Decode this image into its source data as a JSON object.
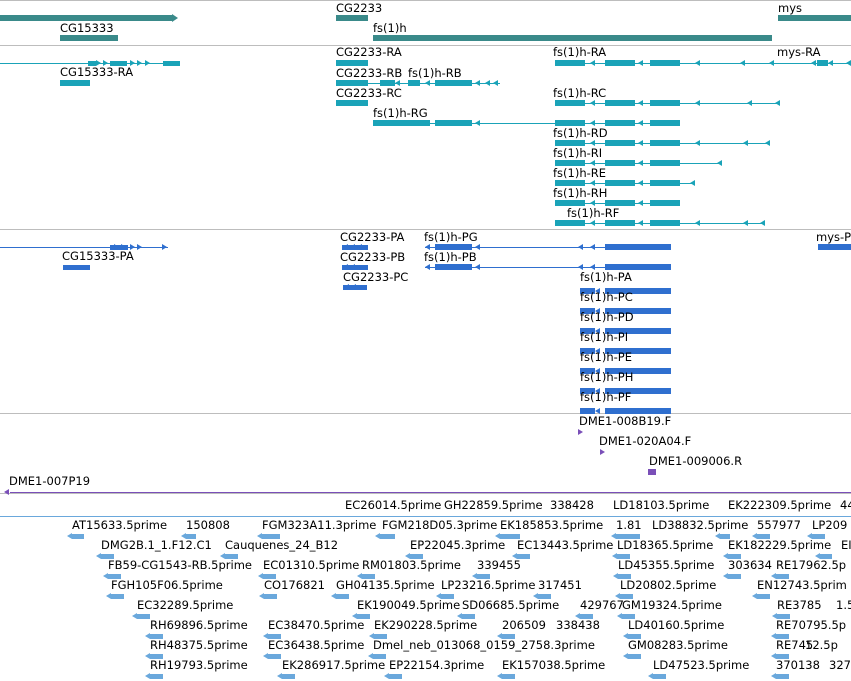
{
  "colors": {
    "gene": "#3a8a8a",
    "transcript": "#1aa3b8",
    "protein": "#2f6fcf",
    "insertion": "#7a4fb8",
    "est": "#6aa8dc",
    "separator": "#bdbdbd"
  },
  "tracks": {
    "genes": [
      "CG15333",
      "CG2233",
      "fs(1)h",
      "mys"
    ],
    "transcripts": [
      "CG2233-RA",
      "fs(1)h-RA",
      "mys-RA",
      "CG15333-RA",
      "CG2233-RB",
      "fs(1)h-RB",
      "CG2233-RC",
      "fs(1)h-RC",
      "fs(1)h-RG",
      "fs(1)h-RD",
      "fs(1)h-RI",
      "fs(1)h-RE",
      "fs(1)h-RH",
      "fs(1)h-RF"
    ],
    "proteins": [
      "CG2233-PA",
      "fs(1)h-PG",
      "mys-P",
      "CG15333-PA",
      "CG2233-PB",
      "fs(1)h-PB",
      "CG2233-PC",
      "fs(1)h-PA",
      "fs(1)h-PC",
      "fs(1)h-PD",
      "fs(1)h-PI",
      "fs(1)h-PE",
      "fs(1)h-PH",
      "fs(1)h-PF"
    ],
    "insertions": [
      "DME1-008B19.F",
      "DME1-020A04.F",
      "DME1-009006.R",
      "DME1-007P19"
    ],
    "ests": [
      "EC26014.5prime",
      "GH22859.5prime",
      "338428",
      "LD18103.5prime",
      "EK222309.5prime",
      "44",
      "AT15633.5prime",
      "150808",
      "FGM323A11.3prime",
      "FGM218D05.3prime",
      "EK185853.5prime",
      "1.81",
      "LD38832.5prime",
      "557977",
      "LP209",
      "DMG2B.1_1.F12.C1",
      "Cauquenes_24_B12",
      "EP22045.3prime",
      "EC13443.5prime",
      "LD18365.5prime",
      "EK182229.5prime",
      "EI",
      "FB59-CG1543-RB.5prime",
      "EC01310.5prime",
      "RM01803.5prime",
      "339455",
      "LD45355.5prime",
      "303634",
      "RE17962.5p",
      "FGH105F06.5prime",
      "CO176821",
      "GH04135.5prime",
      "LP23216.5prime",
      "317451",
      "LD20802.5prime",
      "EN12743.5prim",
      "EC32289.5prime",
      "EK190049.5prime",
      "SD06685.5prime",
      "429767",
      "GM19324.5prime",
      "RE3785",
      "1.5p",
      "RH69896.5prime",
      "EC38470.5prime",
      "EK290228.5prime",
      "206509",
      "338438",
      "LD40160.5prime",
      "RE70795.5p",
      "RH48375.5prime",
      "EC36438.5prime",
      "Dmel_neb_013068_0159_2758.3prime",
      "GM08283.5prime",
      "RE745",
      "12.5p",
      "RH19793.5prime",
      "EK286917.5prime",
      "EP22154.3prime",
      "EK157038.5prime",
      "LD47523.5prime",
      "370138",
      "327"
    ]
  }
}
